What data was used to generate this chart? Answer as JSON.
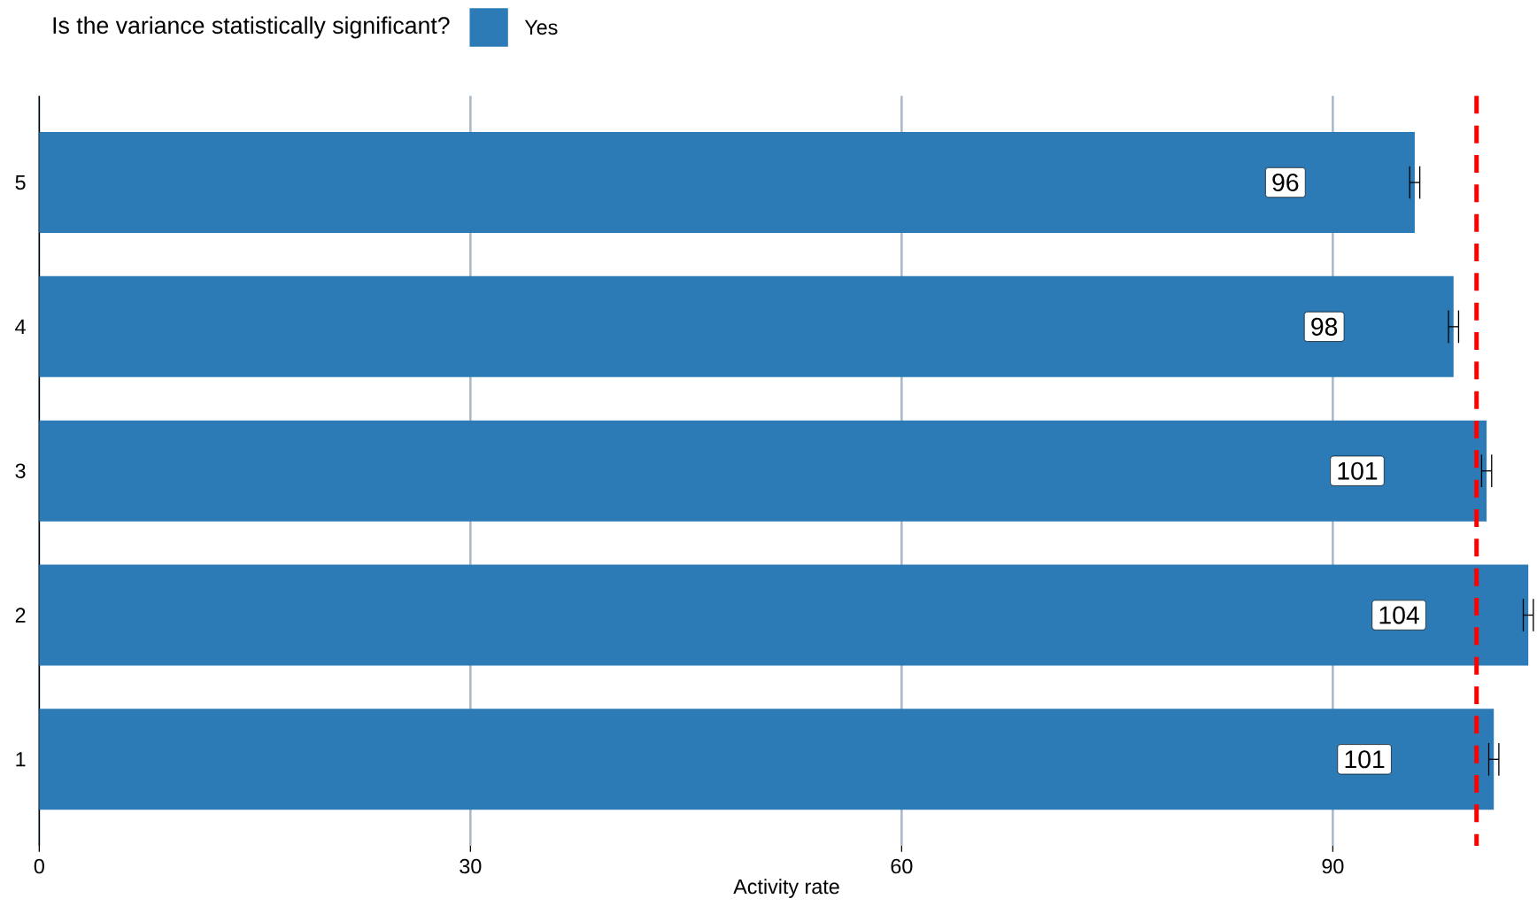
{
  "chart_data": {
    "type": "bar",
    "orientation": "horizontal",
    "legend_title": "Is the variance statistically significant?",
    "xlabel": "Activity rate",
    "categories": [
      "5",
      "4",
      "3",
      "2",
      "1"
    ],
    "series": [
      {
        "name": "Yes",
        "color": "#2c7bb6",
        "values": [
          95.7,
          98.4,
          100.7,
          103.6,
          101.2
        ],
        "errors": [
          0.35,
          0.35,
          0.35,
          0.35,
          0.35
        ],
        "value_labels": [
          "96",
          "98",
          "101",
          "104",
          "101"
        ]
      }
    ],
    "xlim": [
      0,
      104
    ],
    "xticks": [
      0,
      30,
      60,
      90
    ],
    "grid": "x",
    "legend": "top left",
    "ref_lines": [
      {
        "axis": "x",
        "value": 100,
        "color": "#ff0000",
        "line_style": "dashed"
      }
    ]
  }
}
